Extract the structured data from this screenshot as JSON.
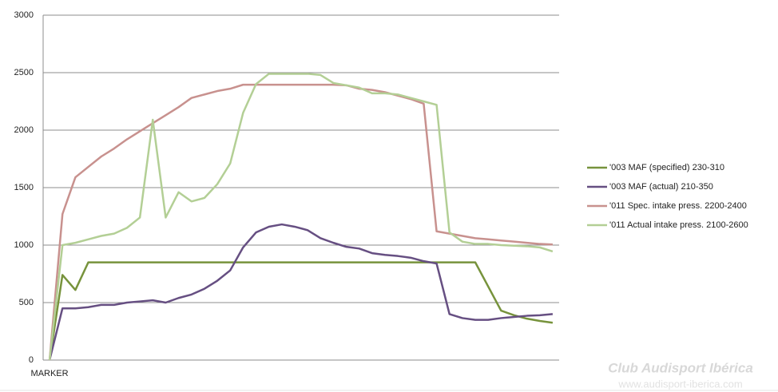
{
  "chart_data": {
    "type": "line",
    "categories": [
      "MARKER",
      null,
      null,
      null,
      null,
      null,
      null,
      null,
      null,
      null,
      null,
      null,
      null,
      null,
      null,
      null,
      null,
      null,
      null,
      null,
      null,
      null,
      null,
      null,
      null,
      null,
      null,
      null,
      null,
      null,
      null,
      null,
      null,
      null,
      null,
      null,
      null,
      null,
      null,
      null
    ],
    "series": [
      {
        "name": "'003 MAF (specified) 230-310",
        "color": "#77933c",
        "values": [
          0,
          740,
          610,
          850,
          850,
          850,
          850,
          850,
          850,
          850,
          850,
          850,
          850,
          850,
          850,
          850,
          850,
          850,
          850,
          850,
          850,
          850,
          850,
          850,
          850,
          850,
          850,
          850,
          850,
          850,
          850,
          850,
          850,
          850,
          640,
          430,
          390,
          360,
          340,
          325
        ]
      },
      {
        "name": "'003 MAF (actual) 210-350",
        "color": "#664f82",
        "values": [
          0,
          450,
          450,
          460,
          480,
          480,
          500,
          510,
          520,
          500,
          540,
          570,
          620,
          690,
          780,
          980,
          1110,
          1160,
          1180,
          1160,
          1130,
          1060,
          1020,
          985,
          970,
          930,
          915,
          905,
          890,
          860,
          840,
          400,
          365,
          350,
          350,
          365,
          375,
          385,
          390,
          400
        ]
      },
      {
        "name": "'011 Spec. intake press. 2200-2400",
        "color": "#c8918e",
        "values": [
          0,
          1270,
          1590,
          1680,
          1770,
          1840,
          1920,
          1990,
          2060,
          2130,
          2200,
          2280,
          2310,
          2340,
          2360,
          2395,
          2395,
          2395,
          2395,
          2395,
          2395,
          2395,
          2395,
          2390,
          2360,
          2350,
          2330,
          2300,
          2270,
          2230,
          1120,
          1100,
          1080,
          1060,
          1050,
          1040,
          1030,
          1020,
          1010,
          1005
        ]
      },
      {
        "name": "'011 Actual intake press. 2100-2600",
        "color": "#b3cf95",
        "values": [
          0,
          1000,
          1020,
          1050,
          1080,
          1100,
          1150,
          1240,
          2090,
          1240,
          1460,
          1380,
          1410,
          1530,
          1710,
          2150,
          2400,
          2490,
          2490,
          2490,
          2490,
          2480,
          2410,
          2390,
          2370,
          2320,
          2320,
          2310,
          2280,
          2250,
          2220,
          1110,
          1030,
          1010,
          1010,
          1000,
          995,
          990,
          980,
          945
        ]
      }
    ],
    "ylim": [
      0,
      3000
    ],
    "yticks": [
      0,
      500,
      1000,
      1500,
      2000,
      2500,
      3000
    ],
    "grid": true,
    "legend": "right",
    "watermark": "Club Audisport Ibérica",
    "watermark_url": "www.audisport-iberica.com"
  }
}
